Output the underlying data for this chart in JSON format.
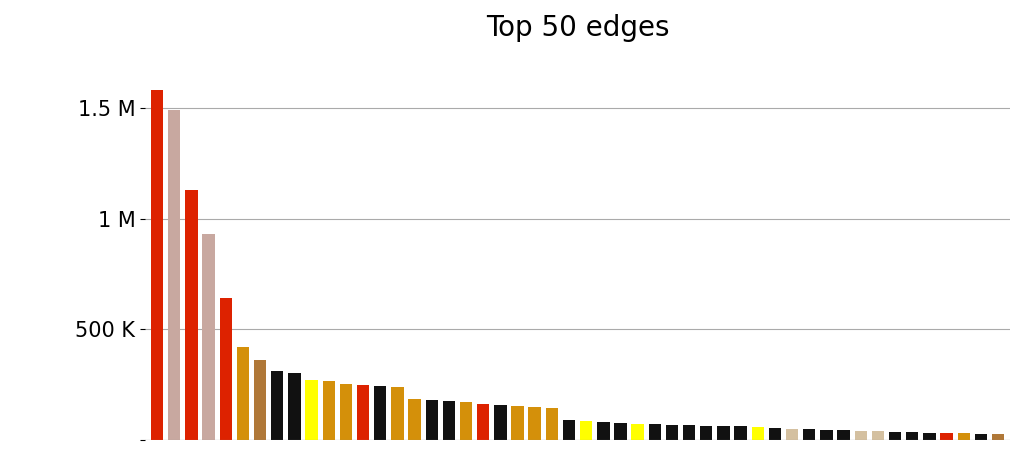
{
  "title": "Top 50 edges",
  "title_fontsize": 20,
  "values": [
    1580000,
    1490000,
    1130000,
    930000,
    640000,
    420000,
    360000,
    310000,
    305000,
    270000,
    265000,
    255000,
    250000,
    245000,
    240000,
    185000,
    180000,
    175000,
    170000,
    165000,
    160000,
    155000,
    150000,
    145000,
    90000,
    88000,
    82000,
    78000,
    75000,
    72000,
    70000,
    68000,
    65000,
    63000,
    62000,
    58000,
    55000,
    52000,
    48000,
    46000,
    44000,
    42000,
    40000,
    38000,
    36000,
    34000,
    32000,
    30000,
    28000,
    26000
  ],
  "colors": [
    "#dd2200",
    "#c8a8a0",
    "#dd2200",
    "#c8a8a0",
    "#dd2200",
    "#d4900a",
    "#b07838",
    "#111111",
    "#111111",
    "#ffff00",
    "#d4900a",
    "#d4900a",
    "#dd2200",
    "#111111",
    "#d4900a",
    "#d4900a",
    "#111111",
    "#111111",
    "#d4900a",
    "#dd2200",
    "#111111",
    "#d4900a",
    "#d4900a",
    "#d4900a",
    "#111111",
    "#ffff00",
    "#111111",
    "#111111",
    "#ffff00",
    "#111111",
    "#111111",
    "#111111",
    "#111111",
    "#111111",
    "#111111",
    "#ffff00",
    "#111111",
    "#d4c0a0",
    "#111111",
    "#111111",
    "#111111",
    "#d4c0a0",
    "#d4c0a0",
    "#111111",
    "#111111",
    "#111111",
    "#dd2200",
    "#d4900a",
    "#111111",
    "#b07838"
  ],
  "yticks": [
    0,
    500000,
    1000000,
    1500000
  ],
  "ytick_labels": [
    "",
    "500 K",
    "1 M",
    "1.5 M"
  ],
  "ylim": [
    0,
    1750000
  ],
  "background_color": "#ffffff",
  "grid_color": "#aaaaaa"
}
